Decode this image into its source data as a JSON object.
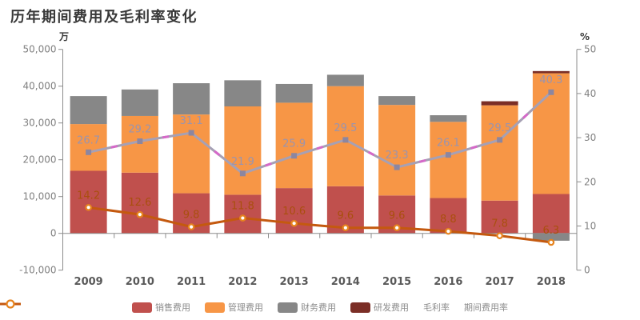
{
  "title": "历年期间费用及毛利率变化",
  "axes": {
    "left": {
      "unit": "万",
      "tick_labels": [
        "50,000",
        "40,000",
        "30,000",
        "20,000",
        "10,000",
        "0",
        "-10,000"
      ],
      "range": [
        -10000,
        50000
      ]
    },
    "right": {
      "unit": "%",
      "tick_labels": [
        "50",
        "40",
        "30",
        "20",
        "10",
        "0"
      ],
      "range": [
        0,
        50
      ]
    },
    "x": {
      "tick_labels": [
        "2009",
        "2010",
        "2011",
        "2012",
        "2013",
        "2014",
        "2015",
        "2016",
        "2017",
        "2018"
      ]
    }
  },
  "chart_data": {
    "type": "combo-stacked-bar-line",
    "categories": [
      "2009",
      "2010",
      "2011",
      "2012",
      "2013",
      "2014",
      "2015",
      "2016",
      "2017",
      "2018"
    ],
    "bar_unit": "万",
    "left_axis_range": [
      -10000,
      50000
    ],
    "right_axis_range": [
      0,
      50
    ],
    "legend_position": "bottom",
    "grid": false,
    "bar_series": [
      {
        "key": "sales-expense",
        "name": "销售费用",
        "color": "#C0504D",
        "values": [
          17000,
          16500,
          10900,
          10500,
          12300,
          12800,
          10300,
          9600,
          8900,
          10700
        ]
      },
      {
        "key": "admin-expense",
        "name": "管理费用",
        "color": "#F79646",
        "values": [
          12700,
          15400,
          21400,
          24000,
          23200,
          27200,
          24600,
          20700,
          25900,
          32800
        ]
      },
      {
        "key": "finance-expense",
        "name": "财务费用",
        "color": "#878787",
        "values": [
          7600,
          7200,
          8500,
          7100,
          5100,
          3100,
          2400,
          1800,
          0,
          -2000
        ]
      },
      {
        "key": "rd-expense",
        "name": "研发费用",
        "color": "#7B2E26",
        "values": [
          0,
          0,
          0,
          0,
          0,
          0,
          0,
          0,
          1100,
          600
        ]
      }
    ],
    "line_series": [
      {
        "key": "gross-margin",
        "name": "毛利率",
        "unit": "%",
        "color": "#A6A0B4",
        "marker": "square",
        "marker_color": "#8C86A0",
        "dash_accent_color": "#D569C9",
        "label_color": "#9A94AE",
        "values": [
          26.7,
          29.2,
          31.1,
          21.9,
          25.9,
          29.5,
          23.3,
          26.1,
          29.5,
          40.3
        ]
      },
      {
        "key": "period-expense-ratio",
        "name": "期间费用率",
        "unit": "%",
        "color": "#C4590F",
        "marker": "circle-open",
        "marker_color": "#E6831E",
        "label_color": "#A94F0E",
        "values": [
          14.2,
          12.6,
          9.8,
          11.8,
          10.6,
          9.6,
          9.6,
          8.8,
          7.8,
          6.3
        ]
      }
    ]
  },
  "colors": {
    "axis_line": "#8C8C8C",
    "tick_label": "#808080",
    "year_label": "#595959",
    "title": "#383838",
    "unit_label": "#3A3A3A",
    "background": "#FFFFFF"
  }
}
